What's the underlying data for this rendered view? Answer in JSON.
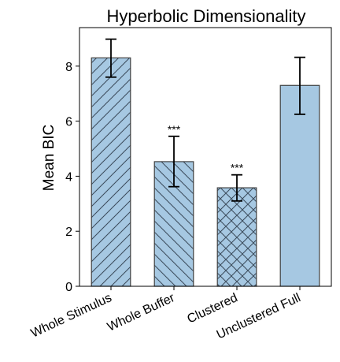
{
  "chart_data": {
    "type": "bar",
    "title": "Hyperbolic Dimensionality",
    "xlabel": "",
    "ylabel": "Mean BIC",
    "ylim": [
      0,
      9.4
    ],
    "yticks": [
      0,
      2,
      4,
      6,
      8
    ],
    "categories": [
      "Whole Stimulus",
      "Whole Buffer",
      "Clustered",
      "Unclustered Full"
    ],
    "values": [
      8.3,
      4.53,
      3.58,
      7.3
    ],
    "error_low": [
      7.6,
      3.62,
      3.1,
      6.25
    ],
    "error_high": [
      8.98,
      5.45,
      4.05,
      8.32
    ],
    "annotations": [
      "",
      "***",
      "***",
      ""
    ],
    "hatches": [
      "forward-diagonal",
      "back-diagonal",
      "crosshatch",
      "none"
    ],
    "bar_color": "#a6c8e2",
    "edge_color": "#404040",
    "grid": false,
    "legend": "none"
  }
}
